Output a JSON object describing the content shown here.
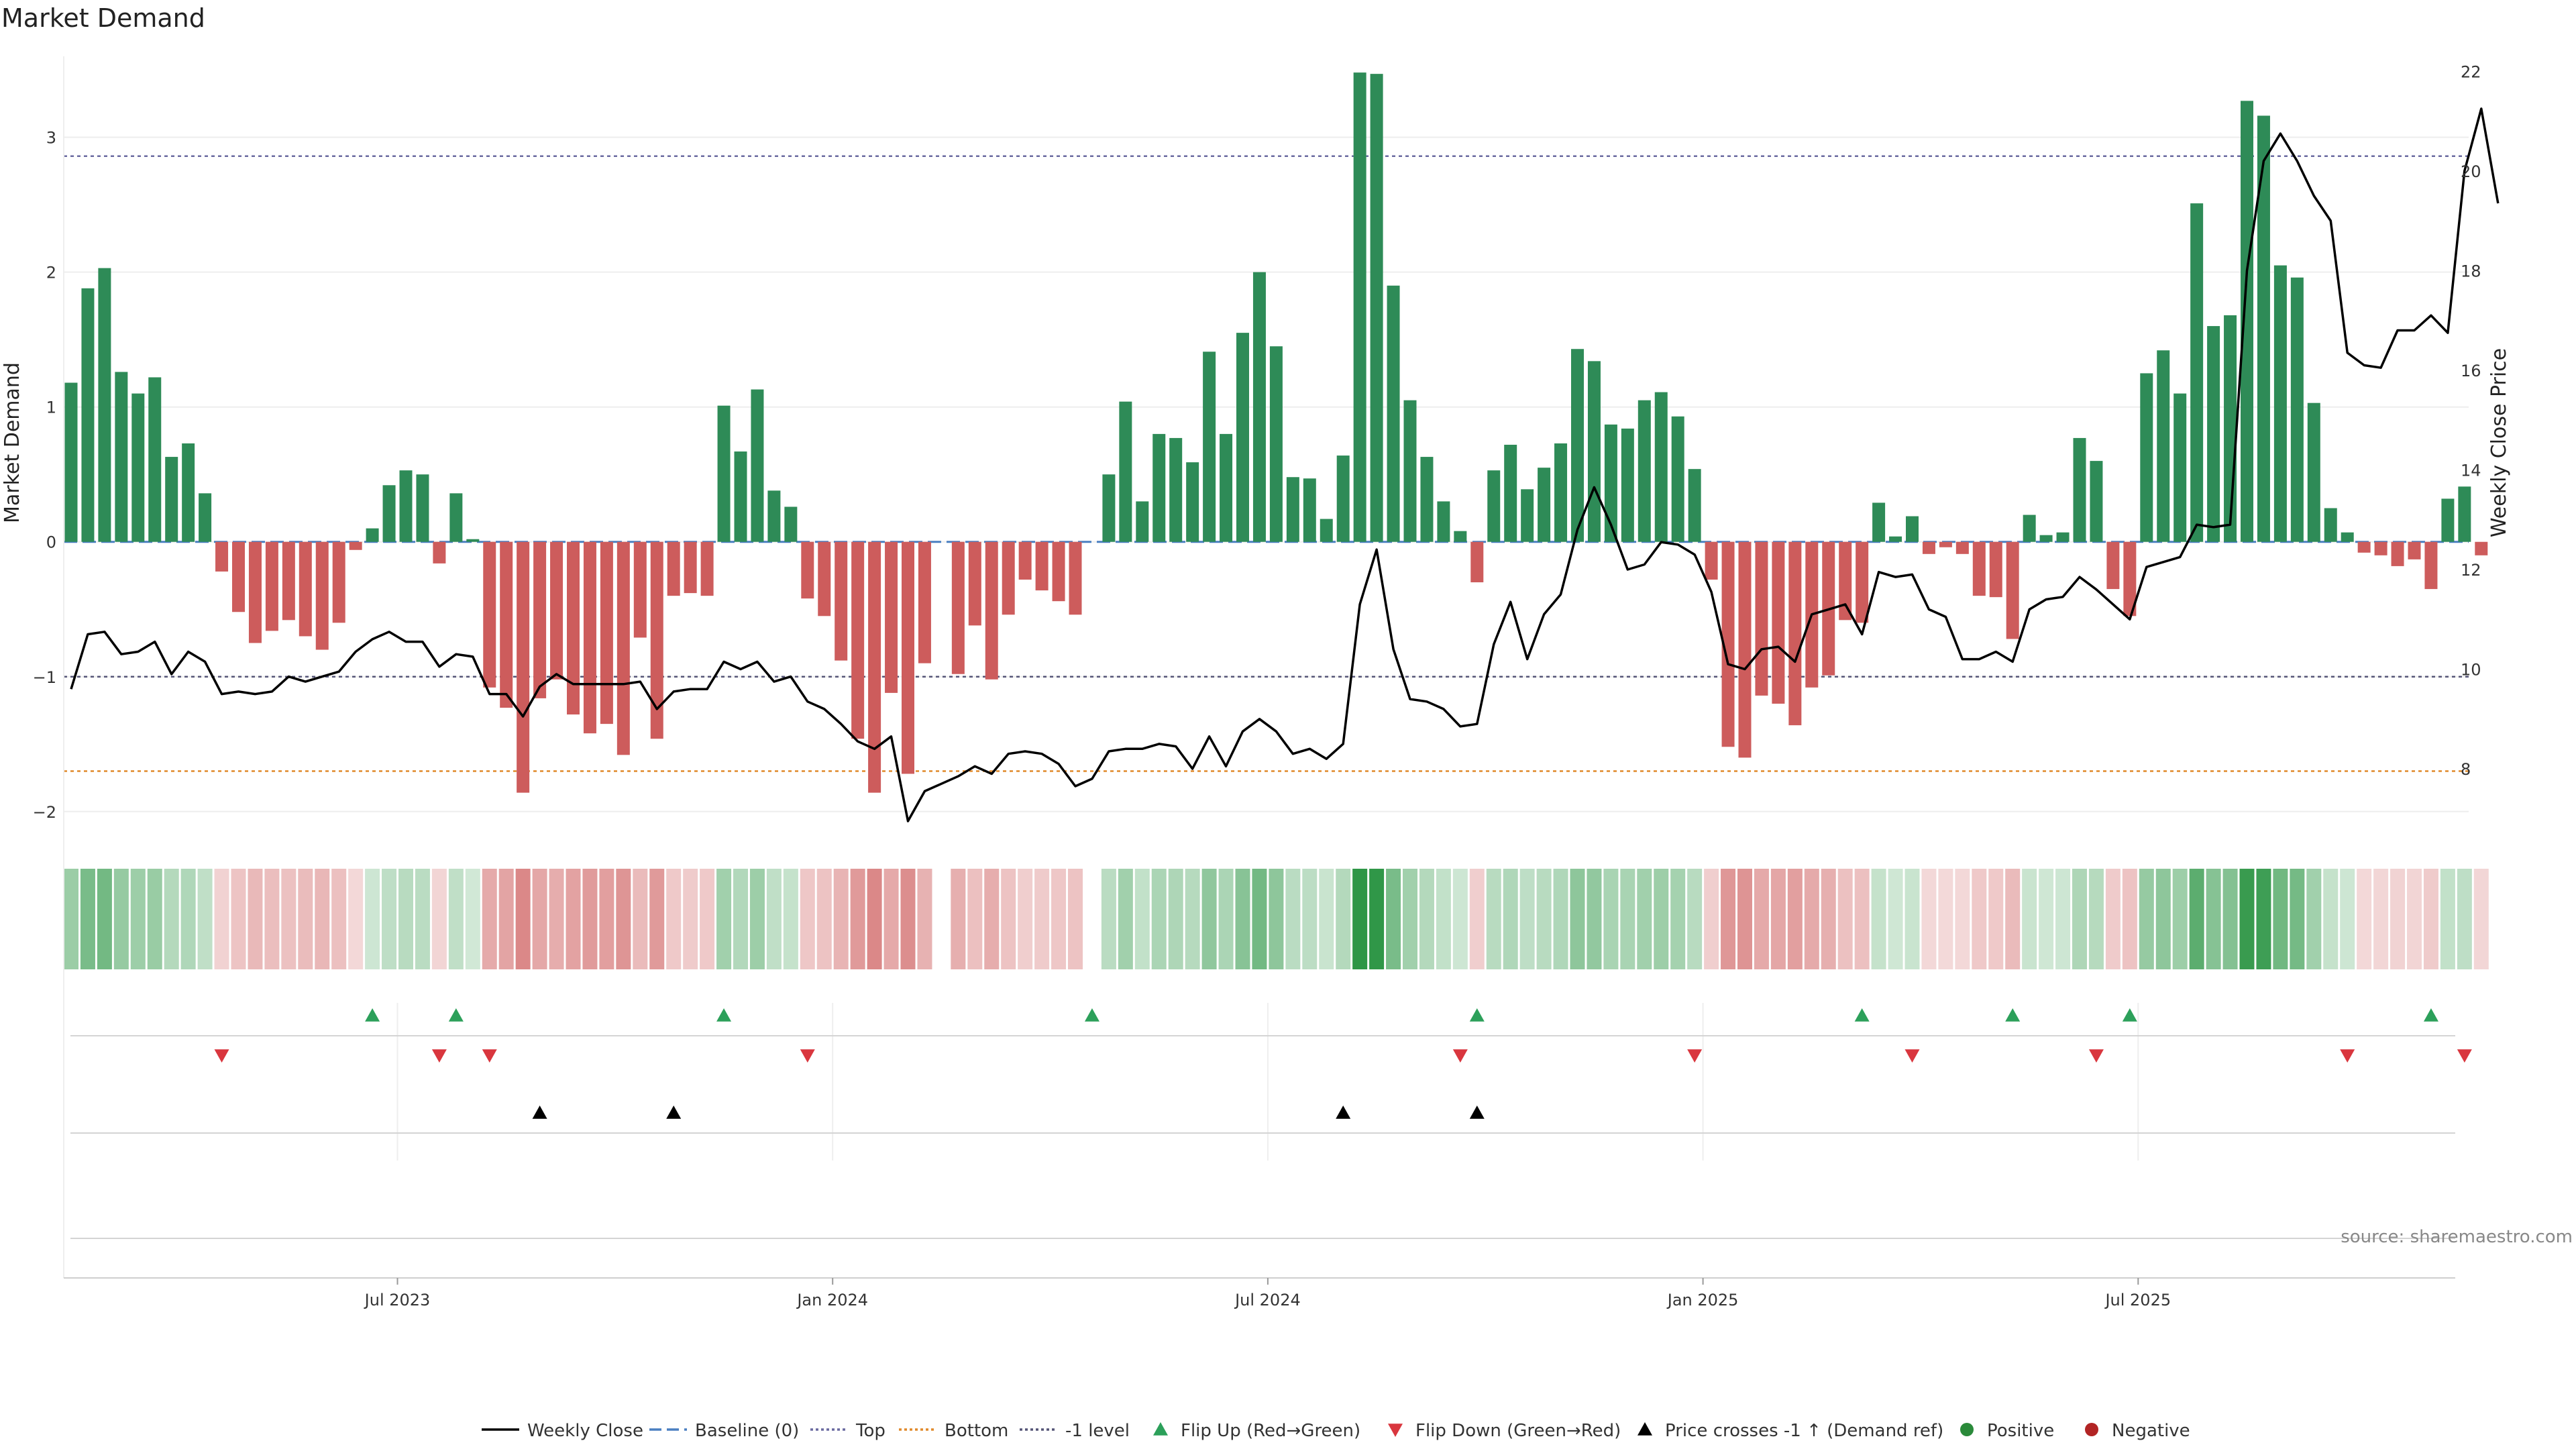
{
  "chart_data": {
    "type": "bar",
    "title": "Market Demand",
    "ylabel_left": "Market Demand",
    "ylabel_right": "Weekly Close Price",
    "source": "source: sharemaestro.com",
    "ylim_left": [
      -2.2,
      3.6
    ],
    "ylim_right": [
      6.6,
      22.3
    ],
    "left_ticks": [
      {
        "v": -2,
        "label": "−2"
      },
      {
        "v": -1,
        "label": "−1"
      },
      {
        "v": 0,
        "label": "0"
      },
      {
        "v": 1,
        "label": "1"
      },
      {
        "v": 2,
        "label": "2"
      },
      {
        "v": 3,
        "label": "3"
      }
    ],
    "right_ticks": [
      {
        "v": 8,
        "label": "8"
      },
      {
        "v": 10,
        "label": "10"
      },
      {
        "v": 12,
        "label": "12"
      },
      {
        "v": 14,
        "label": "14"
      },
      {
        "v": 16,
        "label": "16"
      },
      {
        "v": 18,
        "label": "18"
      },
      {
        "v": 20,
        "label": "20"
      },
      {
        "v": 22,
        "label": "22"
      }
    ],
    "x_ticks": [
      {
        "i": 20,
        "label": "Jul 2023"
      },
      {
        "i": 46,
        "label": "Jan 2024"
      },
      {
        "i": 72,
        "label": "Jul 2024"
      },
      {
        "i": 98,
        "label": "Jan 2025"
      },
      {
        "i": 124,
        "label": "Jul 2025"
      }
    ],
    "levels": {
      "baseline": 0,
      "top": 2.86,
      "bottom": -1.7,
      "minus_one": -1
    },
    "demand": [
      1.18,
      1.88,
      2.03,
      1.26,
      1.1,
      1.22,
      0.63,
      0.73,
      0.36,
      -0.22,
      -0.52,
      -0.75,
      -0.66,
      -0.58,
      -0.7,
      -0.8,
      -0.6,
      -0.06,
      0.1,
      0.42,
      0.53,
      0.5,
      -0.16,
      0.36,
      0.02,
      -1.08,
      -1.23,
      -1.86,
      -1.16,
      -1.02,
      -1.28,
      -1.42,
      -1.35,
      -1.58,
      -0.71,
      -1.46,
      -0.4,
      -0.38,
      -0.4,
      1.01,
      0.67,
      1.13,
      0.38,
      0.26,
      -0.42,
      -0.55,
      -0.88,
      -1.46,
      -1.86,
      -1.12,
      -1.72,
      -0.9,
      0.0,
      -0.98,
      -0.62,
      -1.02,
      -0.54,
      -0.28,
      -0.36,
      -0.44,
      -0.54,
      0.0,
      0.5,
      1.04,
      0.3,
      0.8,
      0.77,
      0.59,
      1.41,
      0.8,
      1.55,
      2.0,
      1.45,
      0.48,
      0.47,
      0.17,
      0.64,
      3.48,
      3.47,
      1.9,
      1.05,
      0.63,
      0.3,
      0.08,
      -0.3,
      0.53,
      0.72,
      0.39,
      0.55,
      0.73,
      1.43,
      1.34,
      0.87,
      0.84,
      1.05,
      1.11,
      0.93,
      0.54,
      -0.28,
      -1.52,
      -1.6,
      -1.14,
      -1.2,
      -1.36,
      -1.08,
      -0.99,
      -0.58,
      -0.6,
      0.29,
      0.04,
      0.19,
      -0.09,
      -0.04,
      -0.09,
      -0.4,
      -0.41,
      -0.72,
      0.2,
      0.05,
      0.07,
      0.77,
      0.6,
      -0.35,
      -0.55,
      1.25,
      1.42,
      1.1,
      2.51,
      1.6,
      1.68,
      3.27,
      3.16,
      2.05,
      1.96,
      1.03,
      0.25,
      0.07,
      -0.08,
      -0.1,
      -0.18,
      -0.13,
      -0.35,
      0.32,
      0.41,
      -0.1
    ],
    "close": [
      9.6,
      10.7,
      10.75,
      10.3,
      10.35,
      10.55,
      9.9,
      10.35,
      10.15,
      9.5,
      9.55,
      9.5,
      9.55,
      9.85,
      9.75,
      9.85,
      9.95,
      10.35,
      10.6,
      10.75,
      10.55,
      10.55,
      10.05,
      10.3,
      10.25,
      9.5,
      9.5,
      9.05,
      9.65,
      9.9,
      9.7,
      9.7,
      9.7,
      9.7,
      9.75,
      9.2,
      9.55,
      9.6,
      9.6,
      10.15,
      10.0,
      10.15,
      9.75,
      9.85,
      9.35,
      9.2,
      8.9,
      8.55,
      8.4,
      8.65,
      6.95,
      7.55,
      7.7,
      7.85,
      8.05,
      7.9,
      8.3,
      8.35,
      8.3,
      8.1,
      7.65,
      7.8,
      8.35,
      8.4,
      8.4,
      8.5,
      8.45,
      8.0,
      8.65,
      8.05,
      8.75,
      9.0,
      8.75,
      8.3,
      8.4,
      8.2,
      8.5,
      11.3,
      12.4,
      10.4,
      9.4,
      9.35,
      9.2,
      8.85,
      8.9,
      10.5,
      11.35,
      10.2,
      11.1,
      11.5,
      12.8,
      13.65,
      12.9,
      12.0,
      12.1,
      12.55,
      12.5,
      12.3,
      11.55,
      10.1,
      10.0,
      10.4,
      10.45,
      10.15,
      11.1,
      11.2,
      11.3,
      10.7,
      11.95,
      11.85,
      11.9,
      11.2,
      11.05,
      10.2,
      10.2,
      10.35,
      10.15,
      11.2,
      11.4,
      11.45,
      11.85,
      11.6,
      11.3,
      11.0,
      12.05,
      12.15,
      12.25,
      12.9,
      12.85,
      12.9,
      18.0,
      20.2,
      20.75,
      20.2,
      19.5,
      19.0,
      16.35,
      16.1,
      16.05,
      16.8,
      16.8,
      17.1,
      16.75,
      20.0,
      21.25,
      19.35
    ],
    "flip_up": [
      18,
      23,
      39,
      61,
      84,
      107,
      116,
      123,
      141
    ],
    "flip_down": [
      9,
      22,
      25,
      44,
      83,
      97,
      110,
      121,
      136,
      143
    ],
    "price_cross": [
      28,
      36,
      76,
      84
    ],
    "legend": [
      {
        "name": "Weekly Close",
        "kind": "line",
        "color": "#000000",
        "dash": ""
      },
      {
        "name": "Baseline (0)",
        "kind": "line",
        "color": "#4a7fc1",
        "dash": "18,8"
      },
      {
        "name": "Top",
        "kind": "line",
        "color": "#6a6aa0",
        "dash": "4,4"
      },
      {
        "name": "Bottom",
        "kind": "line",
        "color": "#e08a2c",
        "dash": "4,4"
      },
      {
        "name": "-1 level",
        "kind": "line",
        "color": "#555577",
        "dash": "4,4"
      },
      {
        "name": "Flip Up (Red→Green)",
        "kind": "tri-up",
        "color": "#2ca05a"
      },
      {
        "name": "Flip Down (Green→Red)",
        "kind": "tri-down",
        "color": "#d9363e"
      },
      {
        "name": "Price crosses -1 ↑ (Demand ref)",
        "kind": "tri-up",
        "color": "#000000"
      },
      {
        "name": "Positive",
        "kind": "dot",
        "color": "#2a8a3a"
      },
      {
        "name": "Negative",
        "kind": "dot",
        "color": "#b22424"
      }
    ],
    "colors": {
      "positive_bar": "#2e8b57",
      "negative_bar": "#cd5c5c",
      "price_line": "#000000",
      "top_line": "#6a6aa0",
      "bottom_line": "#e08a2c",
      "minus_one_line": "#555577",
      "baseline": "#4a7fc1"
    }
  }
}
